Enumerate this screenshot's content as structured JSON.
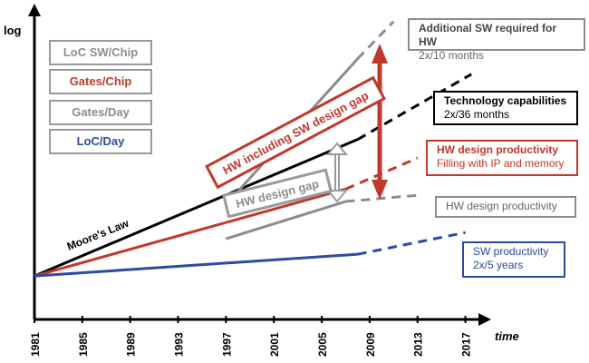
{
  "chart_data": {
    "type": "line",
    "title": "",
    "xlabel": "time",
    "ylabel": "log",
    "x_ticks": [
      "1981",
      "1985",
      "1989",
      "1993",
      "1997",
      "2001",
      "2005",
      "2009",
      "2013",
      "2017"
    ],
    "xlim": [
      1981,
      2019
    ],
    "y_scale": "log (unlabeled)",
    "ylim": [
      0,
      100
    ],
    "legend": [
      {
        "label": "LoC SW/Chip",
        "color": "#8c8c8c"
      },
      {
        "label": "Gates/Chip",
        "color": "#c0392b"
      },
      {
        "label": "Gates/Day",
        "color": "#8c8c8c"
      },
      {
        "label": "LoC/Day",
        "color": "#2c4aa0"
      }
    ],
    "series": [
      {
        "name": "Technology capabilities",
        "legend": "Gates/Chip",
        "color": "#000000",
        "x": [
          1981,
          2008
        ],
        "values": [
          14,
          58
        ],
        "projected": {
          "x": [
            2008,
            2017.5
          ],
          "values": [
            58,
            79
          ]
        }
      },
      {
        "name": "Additional SW required for HW",
        "legend": "LoC SW/Chip",
        "color": "#8c8c8c",
        "x": [
          1997,
          2008
        ],
        "values": [
          37,
          84
        ],
        "projected": {
          "x": [
            2008,
            2011
          ],
          "values": [
            84,
            96
          ]
        }
      },
      {
        "name": "HW design productivity (filling with IP and memory)",
        "legend": "Gates/Chip",
        "color": "#c0392b",
        "x": [
          1981,
          2007
        ],
        "values": [
          14,
          42
        ],
        "projected": {
          "x": [
            2007,
            2013
          ],
          "values": [
            42,
            52
          ]
        }
      },
      {
        "name": "HW design productivity",
        "legend": "Gates/Day",
        "color": "#8c8c8c",
        "x": [
          1997,
          2007
        ],
        "values": [
          26,
          38
        ],
        "projected": {
          "x": [
            2007,
            2013
          ],
          "values": [
            38,
            40
          ]
        }
      },
      {
        "name": "SW productivity",
        "legend": "LoC/Day",
        "color": "#2c4aa0",
        "x": [
          1981,
          2008
        ],
        "values": [
          14,
          21
        ],
        "projected": {
          "x": [
            2008,
            2017
          ],
          "values": [
            21,
            28
          ]
        }
      }
    ],
    "annotations": [
      {
        "text": "Moore's Law",
        "color": "#000000"
      },
      {
        "text": "HW including SW design gap",
        "color": "#c0392b"
      },
      {
        "text": "HW design gap",
        "color": "#8c8c8c"
      }
    ],
    "callouts": [
      {
        "title": "Additional SW required for HW",
        "sub": "2x/10 months",
        "color": "#8c8c8c"
      },
      {
        "title": "Technology capabilities",
        "sub": "2x/36 months",
        "color": "#000000"
      },
      {
        "title": "HW design productivity",
        "sub": "Filling with IP and memory",
        "color": "#c0392b"
      },
      {
        "title": "HW design productivity",
        "sub": "",
        "color": "#8c8c8c"
      },
      {
        "title": "SW productivity",
        "sub": "2x/5 years",
        "color": "#2c4aa0"
      }
    ]
  }
}
